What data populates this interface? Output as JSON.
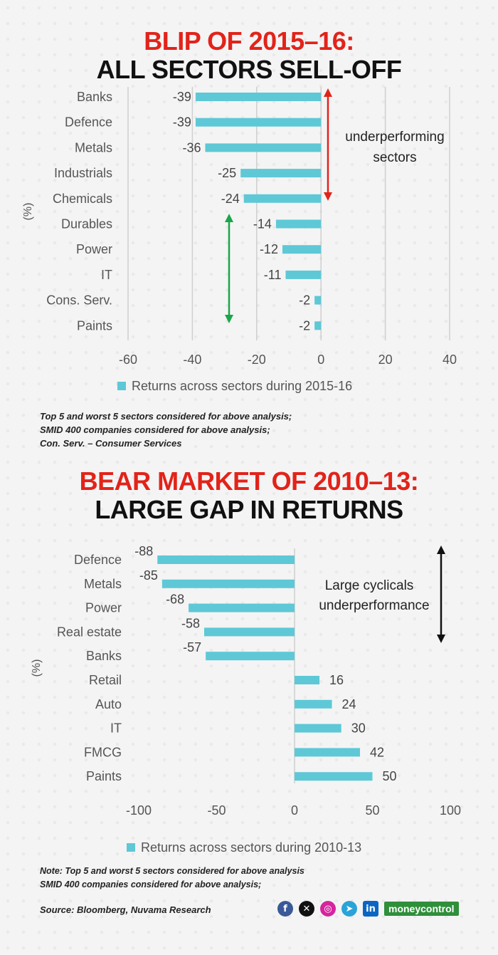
{
  "section1": {
    "title_red": "BLIP OF 2015–16:",
    "title_black": "ALL SECTORS SELL-OFF",
    "annotation": [
      "underperforming",
      "sectors"
    ],
    "notes": [
      "Top 5 and worst 5 sectors considered for above analysis;",
      "SMID 400 companies considered for above analysis;",
      "Con. Serv. – Consumer Services"
    ]
  },
  "section2": {
    "title_red": "BEAR MARKET OF 2010–13:",
    "title_black": "LARGE GAP IN RETURNS",
    "annotation": [
      "Large cyclicals",
      "underperformance"
    ],
    "notes": [
      "Note: Top 5 and worst 5 sectors considered for above analysis",
      "SMID 400 companies considered for above analysis;"
    ]
  },
  "footer": {
    "source": "Source: Bloomberg, Nuvama Research",
    "social_icons": [
      "facebook-icon",
      "x-icon",
      "instagram-icon",
      "telegram-icon",
      "linkedin-icon"
    ],
    "brand": "moneycontrol"
  },
  "colors": {
    "bar": "#5ec8d6",
    "title_red": "#e2231a",
    "arrow_red": "#e2231a",
    "arrow_green": "#1aa64a",
    "grid": "#cfcfcf"
  },
  "chart_data": [
    {
      "type": "bar",
      "orientation": "horizontal",
      "categories": [
        "Banks",
        "Defence",
        "Metals",
        "Industrials",
        "Chemicals",
        "Durables",
        "Power",
        "IT",
        "Cons. Serv.",
        "Paints"
      ],
      "series": [
        {
          "name": "Returns across sectors during 2015-16",
          "values": [
            -39,
            -39,
            -36,
            -25,
            -24,
            -14,
            -12,
            -11,
            -2,
            -2
          ]
        }
      ],
      "xlim": [
        -60,
        40
      ],
      "xticks": [
        -60,
        -40,
        -20,
        0,
        20,
        40
      ],
      "ylabel": "(%)",
      "grid": true,
      "legend": "bottom"
    },
    {
      "type": "bar",
      "orientation": "horizontal",
      "categories": [
        "Defence",
        "Metals",
        "Power",
        "Real estate",
        "Banks",
        "Retail",
        "Auto",
        "IT",
        "FMCG",
        "Paints"
      ],
      "series": [
        {
          "name": "Returns across sectors during 2010-13",
          "values": [
            -88,
            -85,
            -68,
            -58,
            -57,
            16,
            24,
            30,
            42,
            50
          ]
        }
      ],
      "xlim": [
        -100,
        100
      ],
      "xticks": [
        -100,
        -50,
        0,
        50,
        100
      ],
      "ylabel": "(%)",
      "grid": false,
      "legend": "bottom"
    }
  ]
}
